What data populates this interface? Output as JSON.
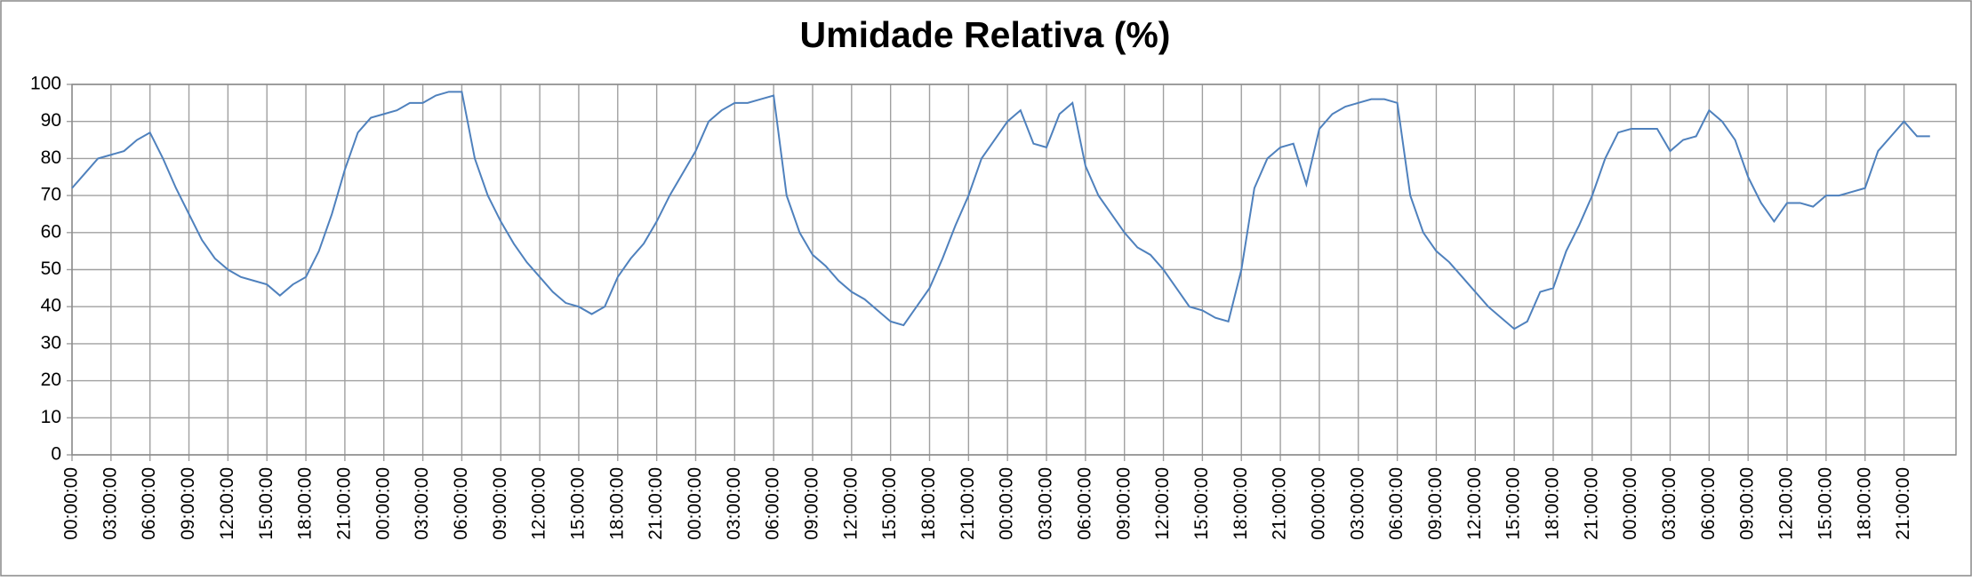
{
  "chart_data": {
    "type": "line",
    "title": "Umidade Relativa (%)",
    "categories": [
      "00:00:00",
      null,
      null,
      "03:00:00",
      null,
      null,
      "06:00:00",
      null,
      null,
      "09:00:00",
      null,
      null,
      "12:00:00",
      null,
      null,
      "15:00:00",
      null,
      null,
      "18:00:00",
      null,
      null,
      "21:00:00",
      null,
      null,
      "00:00:00",
      null,
      null,
      "03:00:00",
      null,
      null,
      "06:00:00",
      null,
      null,
      "09:00:00",
      null,
      null,
      "12:00:00",
      null,
      null,
      "15:00:00",
      null,
      null,
      "18:00:00",
      null,
      null,
      "21:00:00",
      null,
      null,
      "00:00:00",
      null,
      null,
      "03:00:00",
      null,
      null,
      "06:00:00",
      null,
      null,
      "09:00:00",
      null,
      null,
      "12:00:00",
      null,
      null,
      "15:00:00",
      null,
      null,
      "18:00:00",
      null,
      null,
      "21:00:00",
      null,
      null,
      "00:00:00",
      null,
      null,
      "03:00:00",
      null,
      null,
      "06:00:00",
      null,
      null,
      "09:00:00",
      null,
      null,
      "12:00:00",
      null,
      null,
      "15:00:00",
      null,
      null,
      "18:00:00",
      null,
      null,
      "21:00:00",
      null,
      null,
      "00:00:00",
      null,
      null,
      "03:00:00",
      null,
      null,
      "06:00:00",
      null,
      null,
      "09:00:00",
      null,
      null,
      "12:00:00",
      null,
      null,
      "15:00:00",
      null,
      null,
      "18:00:00",
      null,
      null,
      "21:00:00",
      null,
      null,
      "00:00:00",
      null,
      null,
      "03:00:00",
      null,
      null,
      "06:00:00",
      null,
      null,
      "09:00:00",
      null,
      null,
      "12:00:00",
      null,
      null,
      "15:00:00",
      null,
      null,
      "18:00:00",
      null,
      null,
      "21:00:00",
      null,
      null
    ],
    "values": [
      72,
      76,
      80,
      81,
      82,
      85,
      87,
      80,
      72,
      65,
      58,
      53,
      50,
      48,
      47,
      46,
      43,
      46,
      48,
      55,
      65,
      77,
      87,
      91,
      92,
      93,
      95,
      95,
      97,
      98,
      98,
      80,
      70,
      63,
      57,
      52,
      48,
      44,
      41,
      40,
      38,
      40,
      48,
      53,
      57,
      63,
      70,
      76,
      82,
      90,
      93,
      95,
      95,
      96,
      97,
      70,
      60,
      54,
      51,
      47,
      44,
      42,
      39,
      36,
      35,
      40,
      45,
      53,
      62,
      70,
      80,
      85,
      90,
      93,
      84,
      83,
      92,
      95,
      78,
      70,
      65,
      60,
      56,
      54,
      50,
      45,
      40,
      39,
      37,
      36,
      50,
      72,
      80,
      83,
      84,
      73,
      88,
      92,
      94,
      95,
      96,
      96,
      95,
      70,
      60,
      55,
      52,
      48,
      44,
      40,
      37,
      34,
      36,
      44,
      45,
      55,
      62,
      70,
      80,
      87,
      88,
      88,
      88,
      82,
      85,
      86,
      93,
      90,
      85,
      75,
      68,
      63,
      68,
      68,
      67,
      70,
      70,
      71,
      72,
      82,
      86,
      90,
      86,
      86
    ],
    "color": "#4f81bd",
    "ylim": [
      0,
      100
    ],
    "yticks": [
      0,
      10,
      20,
      30,
      40,
      50,
      60,
      70,
      80,
      90,
      100
    ],
    "grid": true
  }
}
